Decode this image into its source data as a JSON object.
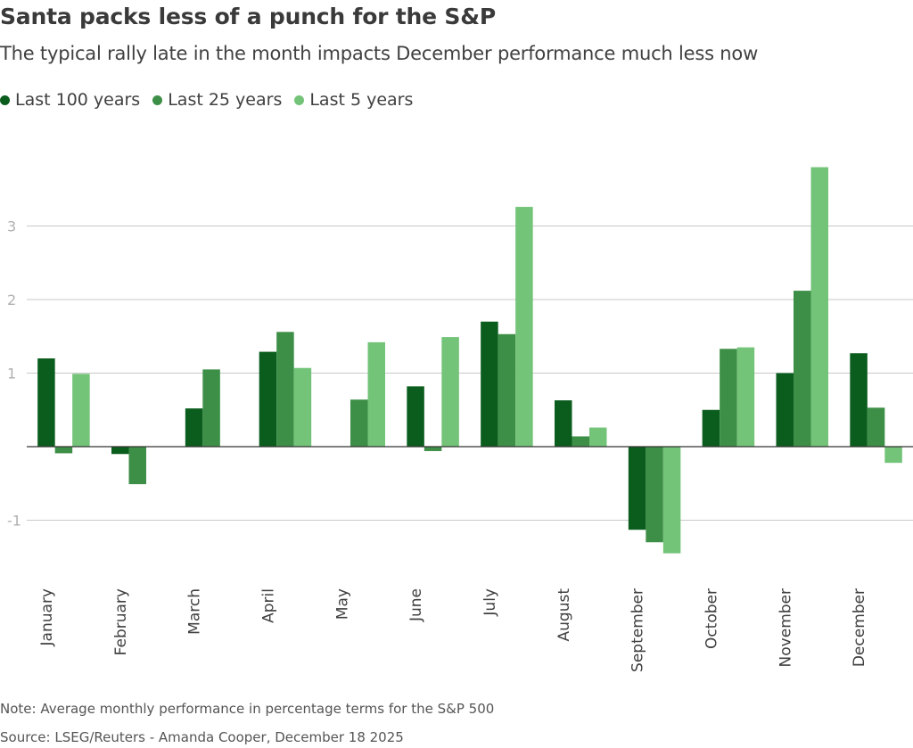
{
  "title": "Santa packs less of a punch for the S&P",
  "subtitle": "The typical rally late in the month impacts December performance much less now",
  "legend": [
    {
      "label": "Last 100 years",
      "color": "#0b5d1e"
    },
    {
      "label": "Last 25 years",
      "color": "#3d8f47"
    },
    {
      "label": "Last 5 years",
      "color": "#73c378"
    }
  ],
  "note": "Note: Average monthly performance in percentage terms for the S&P 500",
  "source": "Source: LSEG/Reuters - Amanda Cooper, December 18 2025",
  "chart_data": {
    "type": "bar",
    "categories": [
      "January",
      "February",
      "March",
      "April",
      "May",
      "June",
      "July",
      "August",
      "September",
      "October",
      "November",
      "December"
    ],
    "series": [
      {
        "name": "Last 100 years",
        "color": "#0b5d1e",
        "values": [
          1.2,
          -0.1,
          0.52,
          1.29,
          0.0,
          0.82,
          1.7,
          0.63,
          -1.13,
          0.5,
          1.0,
          1.27
        ]
      },
      {
        "name": "Last 25 years",
        "color": "#3d8f47",
        "values": [
          -0.09,
          -0.51,
          1.05,
          1.56,
          0.64,
          -0.06,
          1.53,
          0.14,
          -1.3,
          1.33,
          2.12,
          0.53
        ]
      },
      {
        "name": "Last 5 years",
        "color": "#73c378",
        "values": [
          0.99,
          0.0,
          0.0,
          1.07,
          1.42,
          1.49,
          3.26,
          0.26,
          -1.45,
          1.35,
          3.8,
          -0.22
        ]
      }
    ],
    "yticks": [
      -1,
      1,
      2,
      3
    ],
    "ylim": [
      -1.7,
      4.1
    ],
    "xlabel": "",
    "ylabel": "",
    "grid": true,
    "legend_position": "top-left"
  }
}
